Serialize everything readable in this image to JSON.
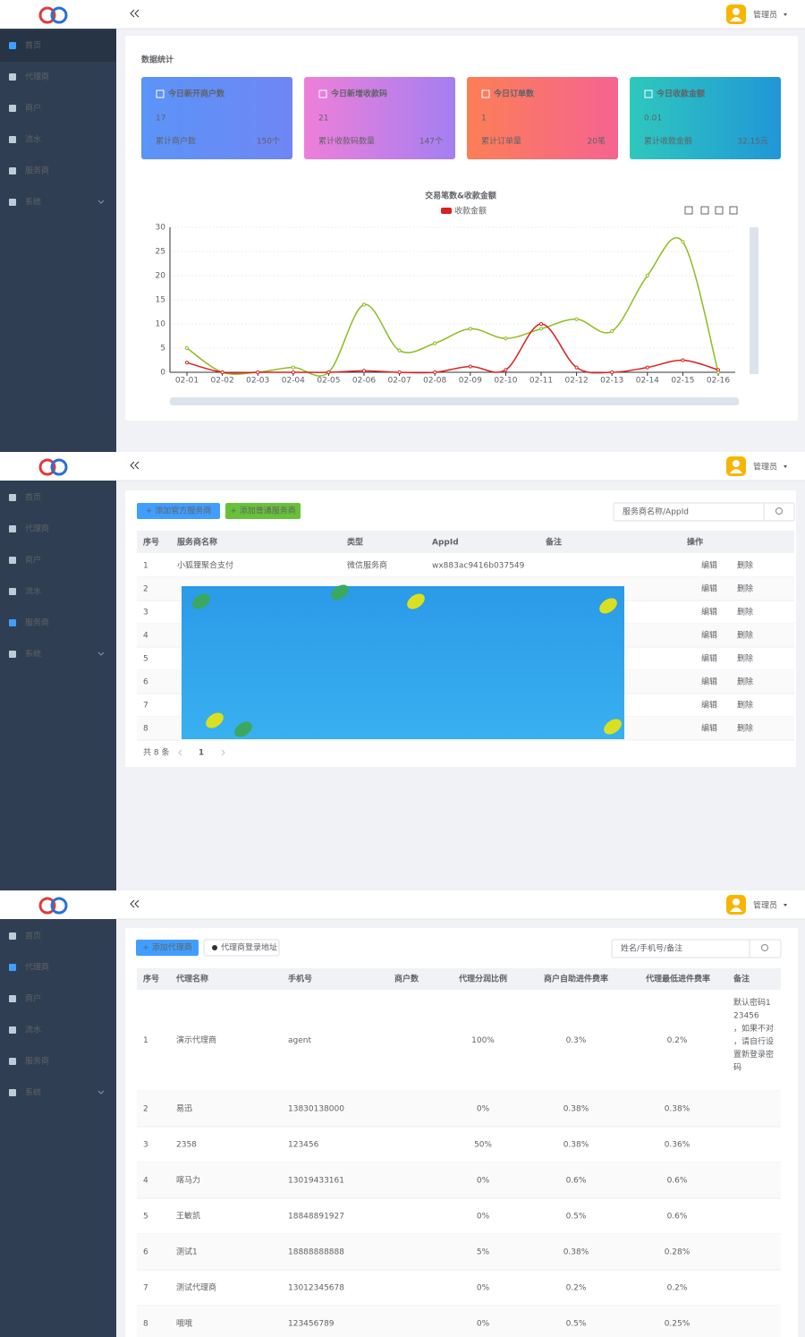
{
  "sidebar_menu": [
    "首页",
    "代理商",
    "商户",
    "流水",
    "服务商",
    "系统"
  ],
  "user": "管理员",
  "dashboard": {
    "title": "数据统计",
    "stats": [
      {
        "title": "今日新开商户数",
        "value": 17,
        "sub_label": "累计商户数",
        "sub_value": "150个"
      },
      {
        "title": "今日新增收款码",
        "value": 21,
        "sub_label": "累计收款码数量",
        "sub_value": "147个"
      },
      {
        "title": "今日订单数",
        "value": 1,
        "sub_label": "累计订单量",
        "sub_value": "20笔"
      },
      {
        "title": "今日收款金额",
        "value": 0.01,
        "sub_label": "累计收款金额",
        "sub_value": "32.15元"
      }
    ],
    "chart_data": {
      "type": "line",
      "title": "交易笔数&收款金额",
      "categories": [
        "02-01",
        "02-02",
        "02-03",
        "02-04",
        "02-05",
        "02-06",
        "02-07",
        "02-08",
        "02-09",
        "02-10",
        "02-11",
        "02-12",
        "02-13",
        "02-14",
        "02-15",
        "02-16"
      ],
      "series": [
        {
          "color": "#8dbd1e",
          "values": [
            5,
            0,
            0,
            1,
            0,
            14,
            4.5,
            6,
            9,
            7,
            9,
            11,
            8.5,
            20,
            27,
            0
          ]
        },
        {
          "name": "收款金额",
          "color": "#dc1f1f",
          "values": [
            2,
            0,
            0,
            0,
            0,
            0.3,
            0,
            0,
            1.2,
            0.5,
            10,
            1,
            0,
            1,
            2.5,
            0.5
          ]
        }
      ],
      "ylim": [
        0,
        30
      ],
      "yticks": [
        0,
        5,
        10,
        15,
        20,
        25,
        30
      ],
      "grid": true
    }
  },
  "providers": {
    "buttons": [
      "+ 添加官方服务商",
      "+ 添加普通服务商"
    ],
    "search_placeholder": "服务商名称/AppId",
    "columns": [
      "序号",
      "服务商名称",
      "类型",
      "AppId",
      "备注",
      "操作"
    ],
    "rows": [
      {
        "no": 1,
        "name": "小狐狸聚合支付",
        "type": "微信服务商",
        "appid": "wx883ac9416b037549"
      },
      {
        "no": 2
      },
      {
        "no": 3
      },
      {
        "no": 4
      },
      {
        "no": 5
      },
      {
        "no": 6
      },
      {
        "no": 7
      },
      {
        "no": 8
      }
    ],
    "actions": [
      "编辑",
      "删除"
    ],
    "total": "共 8 条",
    "page": 1
  },
  "agents": {
    "buttons": [
      "+ 添加代理商",
      "代理商登录地址"
    ],
    "search_placeholder": "姓名/手机号/备注",
    "columns": [
      "序号",
      "代理名称",
      "手机号",
      "商户数",
      "代理分润比例",
      "商户自助进件费率",
      "代理最低进件费率",
      "备注"
    ],
    "rows": [
      {
        "no": 1,
        "name": "演示代理商",
        "phone": "agent",
        "share": "100%",
        "self_rate": "0.3%",
        "min_rate": "0.2%",
        "remark": "默认密码123456，如果不对，请自行设置新登录密码"
      },
      {
        "no": 2,
        "name": "易迅",
        "phone": "13830138000",
        "share": "0%",
        "self_rate": "0.38%",
        "min_rate": "0.38%"
      },
      {
        "no": 3,
        "name": "2358",
        "phone": "123456",
        "share": "50%",
        "self_rate": "0.38%",
        "min_rate": "0.36%"
      },
      {
        "no": 4,
        "name": "喀马力",
        "phone": "13019433161",
        "share": "0%",
        "self_rate": "0.6%",
        "min_rate": "0.6%"
      },
      {
        "no": 5,
        "name": "王敏凯",
        "phone": "18848891927",
        "share": "0%",
        "self_rate": "0.5%",
        "min_rate": "0.6%"
      },
      {
        "no": 6,
        "name": "测试1",
        "phone": "18888888888",
        "share": "5%",
        "self_rate": "0.38%",
        "min_rate": "0.28%"
      },
      {
        "no": 7,
        "name": "测试代理商",
        "phone": "13012345678",
        "share": "0%",
        "self_rate": "0.2%",
        "min_rate": "0.2%"
      },
      {
        "no": 8,
        "name": "哦哦",
        "phone": "123456789",
        "share": "0%",
        "self_rate": "0.5%",
        "min_rate": "0.25%"
      }
    ]
  }
}
